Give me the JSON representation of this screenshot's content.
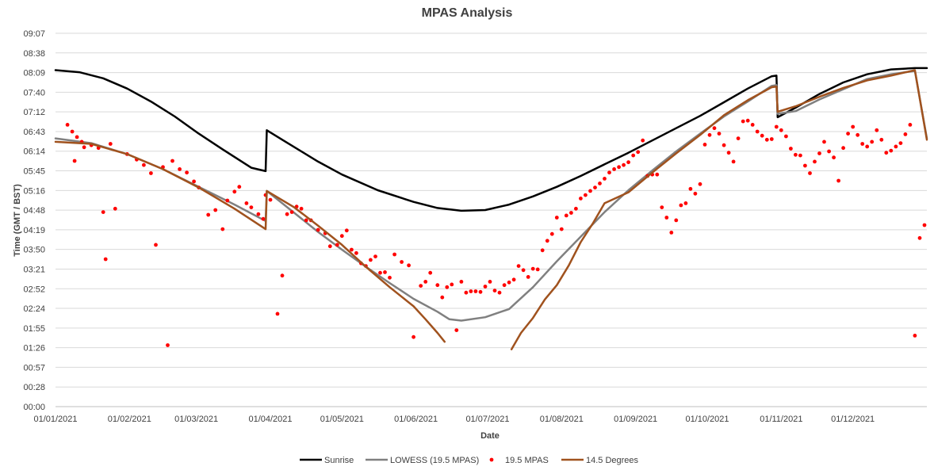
{
  "chart_data": {
    "type": "line",
    "title": "MPAS Analysis",
    "xlabel": "Date",
    "ylabel": "Time (GMT / BST)",
    "x_range_days": [
      0,
      365
    ],
    "x_tick_labels": [
      "01/01/2021",
      "01/02/2021",
      "01/03/2021",
      "01/04/2021",
      "01/05/2021",
      "01/06/2021",
      "01/07/2021",
      "01/08/2021",
      "01/09/2021",
      "01/10/2021",
      "01/11/2021",
      "01/12/2021"
    ],
    "x_tick_days": [
      0,
      31,
      59,
      90,
      120,
      151,
      181,
      212,
      243,
      273,
      304,
      334
    ],
    "ylim_minutes": [
      0,
      547
    ],
    "y_tick_labels": [
      "00:00",
      "00:28",
      "00:57",
      "01:26",
      "01:55",
      "02:24",
      "02:52",
      "03:21",
      "03:50",
      "04:19",
      "04:48",
      "05:16",
      "05:45",
      "06:14",
      "06:43",
      "07:12",
      "07:40",
      "08:09",
      "08:38",
      "09:07"
    ],
    "grid": true,
    "legend_position": "bottom",
    "series": [
      {
        "name": "Sunrise",
        "kind": "line",
        "color": "#000000",
        "points": [
          [
            0,
            493
          ],
          [
            10,
            490
          ],
          [
            20,
            481
          ],
          [
            30,
            466
          ],
          [
            40,
            447
          ],
          [
            50,
            425
          ],
          [
            60,
            400
          ],
          [
            70,
            377
          ],
          [
            82,
            350
          ],
          [
            88,
            345
          ],
          [
            88.5,
            405
          ],
          [
            95,
            391
          ],
          [
            110,
            359
          ],
          [
            120,
            340
          ],
          [
            135,
            317
          ],
          [
            150,
            300
          ],
          [
            160,
            291
          ],
          [
            170,
            287
          ],
          [
            180,
            288
          ],
          [
            190,
            296
          ],
          [
            200,
            308
          ],
          [
            210,
            322
          ],
          [
            220,
            338
          ],
          [
            230,
            355
          ],
          [
            240,
            372
          ],
          [
            250,
            390
          ],
          [
            260,
            408
          ],
          [
            270,
            426
          ],
          [
            280,
            446
          ],
          [
            290,
            466
          ],
          [
            300,
            484
          ],
          [
            302,
            485
          ],
          [
            302.5,
            424
          ],
          [
            310,
            438
          ],
          [
            320,
            458
          ],
          [
            330,
            475
          ],
          [
            340,
            487
          ],
          [
            350,
            494
          ],
          [
            360,
            496
          ],
          [
            365,
            496
          ]
        ]
      },
      {
        "name": "LOWESS (19.5 MPAS)",
        "kind": "line",
        "color": "#808080",
        "points": [
          [
            0,
            393
          ],
          [
            15,
            386
          ],
          [
            30,
            370
          ],
          [
            45,
            348
          ],
          [
            60,
            322
          ],
          [
            75,
            296
          ],
          [
            88,
            272
          ],
          [
            88.5,
            316
          ],
          [
            100,
            284
          ],
          [
            110,
            256
          ],
          [
            120,
            230
          ],
          [
            130,
            205
          ],
          [
            140,
            181
          ],
          [
            150,
            158
          ],
          [
            160,
            139
          ],
          [
            165,
            128
          ],
          [
            170,
            126
          ],
          [
            180,
            131
          ],
          [
            190,
            143
          ],
          [
            200,
            175
          ],
          [
            210,
            213
          ],
          [
            220,
            249
          ],
          [
            230,
            285
          ],
          [
            240,
            317
          ],
          [
            250,
            346
          ],
          [
            260,
            374
          ],
          [
            270,
            400
          ],
          [
            280,
            425
          ],
          [
            290,
            447
          ],
          [
            300,
            470
          ],
          [
            302,
            471
          ],
          [
            302.5,
            429
          ],
          [
            310,
            433
          ],
          [
            320,
            450
          ],
          [
            330,
            465
          ],
          [
            340,
            480
          ],
          [
            350,
            487
          ],
          [
            360,
            492
          ],
          [
            365,
            393
          ]
        ]
      },
      {
        "name": "19.5 MPAS",
        "kind": "scatter",
        "color": "#ff0000",
        "points": [
          [
            5,
            413
          ],
          [
            7,
            403
          ],
          [
            9,
            395
          ],
          [
            11,
            388
          ],
          [
            8,
            360
          ],
          [
            12,
            380
          ],
          [
            15,
            383
          ],
          [
            18,
            379
          ],
          [
            20,
            285
          ],
          [
            21,
            216
          ],
          [
            23,
            385
          ],
          [
            25,
            290
          ],
          [
            30,
            370
          ],
          [
            34,
            362
          ],
          [
            37,
            354
          ],
          [
            40,
            342
          ],
          [
            42,
            237
          ],
          [
            45,
            351
          ],
          [
            47,
            90
          ],
          [
            49,
            360
          ],
          [
            52,
            348
          ],
          [
            55,
            343
          ],
          [
            58,
            330
          ],
          [
            60,
            321
          ],
          [
            64,
            281
          ],
          [
            67,
            288
          ],
          [
            70,
            260
          ],
          [
            72,
            302
          ],
          [
            75,
            315
          ],
          [
            77,
            322
          ],
          [
            80,
            298
          ],
          [
            82,
            292
          ],
          [
            85,
            282
          ],
          [
            87,
            275
          ],
          [
            88,
            310
          ],
          [
            90,
            303
          ],
          [
            93,
            136
          ],
          [
            95,
            192
          ],
          [
            97,
            282
          ],
          [
            99,
            285
          ],
          [
            101,
            293
          ],
          [
            103,
            290
          ],
          [
            105,
            273
          ],
          [
            107,
            273
          ],
          [
            110,
            259
          ],
          [
            113,
            254
          ],
          [
            115,
            235
          ],
          [
            118,
            237
          ],
          [
            120,
            250
          ],
          [
            122,
            258
          ],
          [
            124,
            230
          ],
          [
            126,
            225
          ],
          [
            128,
            210
          ],
          [
            130,
            206
          ],
          [
            132,
            215
          ],
          [
            134,
            220
          ],
          [
            136,
            196
          ],
          [
            138,
            197
          ],
          [
            140,
            189
          ],
          [
            142,
            223
          ],
          [
            145,
            212
          ],
          [
            148,
            207
          ],
          [
            150,
            102
          ],
          [
            153,
            177
          ],
          [
            155,
            183
          ],
          [
            157,
            196
          ],
          [
            160,
            178
          ],
          [
            162,
            160
          ],
          [
            164,
            175
          ],
          [
            166,
            179
          ],
          [
            168,
            112
          ],
          [
            170,
            183
          ],
          [
            172,
            167
          ],
          [
            174,
            169
          ],
          [
            176,
            169
          ],
          [
            178,
            168
          ],
          [
            180,
            176
          ],
          [
            182,
            183
          ],
          [
            184,
            170
          ],
          [
            186,
            167
          ],
          [
            188,
            178
          ],
          [
            190,
            182
          ],
          [
            192,
            186
          ],
          [
            194,
            206
          ],
          [
            196,
            200
          ],
          [
            198,
            190
          ],
          [
            200,
            202
          ],
          [
            202,
            201
          ],
          [
            204,
            229
          ],
          [
            206,
            243
          ],
          [
            208,
            253
          ],
          [
            210,
            277
          ],
          [
            212,
            260
          ],
          [
            214,
            280
          ],
          [
            216,
            284
          ],
          [
            218,
            290
          ],
          [
            220,
            305
          ],
          [
            222,
            310
          ],
          [
            224,
            316
          ],
          [
            226,
            321
          ],
          [
            228,
            327
          ],
          [
            230,
            334
          ],
          [
            232,
            343
          ],
          [
            234,
            348
          ],
          [
            236,
            351
          ],
          [
            238,
            354
          ],
          [
            240,
            358
          ],
          [
            242,
            368
          ],
          [
            244,
            373
          ],
          [
            246,
            390
          ],
          [
            248,
            338
          ],
          [
            250,
            340
          ],
          [
            252,
            340
          ],
          [
            254,
            292
          ],
          [
            256,
            277
          ],
          [
            258,
            255
          ],
          [
            260,
            273
          ],
          [
            262,
            295
          ],
          [
            264,
            298
          ],
          [
            266,
            319
          ],
          [
            268,
            312
          ],
          [
            270,
            326
          ],
          [
            272,
            384
          ],
          [
            274,
            398
          ],
          [
            276,
            408
          ],
          [
            278,
            400
          ],
          [
            280,
            383
          ],
          [
            282,
            372
          ],
          [
            284,
            359
          ],
          [
            286,
            393
          ],
          [
            288,
            418
          ],
          [
            290,
            419
          ],
          [
            292,
            413
          ],
          [
            294,
            403
          ],
          [
            296,
            397
          ],
          [
            298,
            391
          ],
          [
            300,
            392
          ],
          [
            302,
            410
          ],
          [
            304,
            405
          ],
          [
            306,
            396
          ],
          [
            308,
            378
          ],
          [
            310,
            369
          ],
          [
            312,
            368
          ],
          [
            314,
            353
          ],
          [
            316,
            342
          ],
          [
            318,
            359
          ],
          [
            320,
            371
          ],
          [
            322,
            388
          ],
          [
            324,
            374
          ],
          [
            326,
            365
          ],
          [
            328,
            331
          ],
          [
            330,
            379
          ],
          [
            332,
            400
          ],
          [
            334,
            410
          ],
          [
            336,
            398
          ],
          [
            338,
            385
          ],
          [
            340,
            381
          ],
          [
            342,
            388
          ],
          [
            344,
            405
          ],
          [
            346,
            391
          ],
          [
            348,
            372
          ],
          [
            350,
            375
          ],
          [
            352,
            381
          ],
          [
            354,
            386
          ],
          [
            356,
            399
          ],
          [
            358,
            413
          ],
          [
            360,
            104
          ],
          [
            362,
            247
          ],
          [
            364,
            266
          ]
        ]
      },
      {
        "name": "14.5 Degrees",
        "kind": "line",
        "color": "#a0521e",
        "segments": [
          [
            [
              0,
              388
            ],
            [
              15,
              385
            ],
            [
              30,
              370
            ],
            [
              45,
              348
            ],
            [
              60,
              321
            ],
            [
              75,
              290
            ],
            [
              88,
              260
            ],
            [
              88.5,
              316
            ],
            [
              100,
              292
            ],
            [
              110,
              265
            ],
            [
              120,
              237
            ],
            [
              130,
              205
            ],
            [
              140,
              175
            ],
            [
              150,
              147
            ],
            [
              155,
              128
            ],
            [
              160,
              108
            ],
            [
              163,
              95
            ]
          ],
          [
            [
              191,
              84
            ],
            [
              195,
              108
            ],
            [
              200,
              130
            ],
            [
              205,
              157
            ],
            [
              210,
              178
            ],
            [
              215,
              207
            ],
            [
              220,
              241
            ],
            [
              225,
              268
            ],
            [
              230,
              298
            ],
            [
              240,
              314
            ],
            [
              250,
              343
            ],
            [
              260,
              371
            ],
            [
              270,
              398
            ],
            [
              280,
              427
            ],
            [
              290,
              449
            ],
            [
              300,
              468
            ],
            [
              302,
              469
            ],
            [
              302.5,
              432
            ],
            [
              310,
              440
            ],
            [
              320,
              454
            ],
            [
              330,
              467
            ],
            [
              340,
              478
            ],
            [
              350,
              485
            ],
            [
              360,
              493
            ],
            [
              365,
              391
            ]
          ]
        ]
      }
    ]
  }
}
